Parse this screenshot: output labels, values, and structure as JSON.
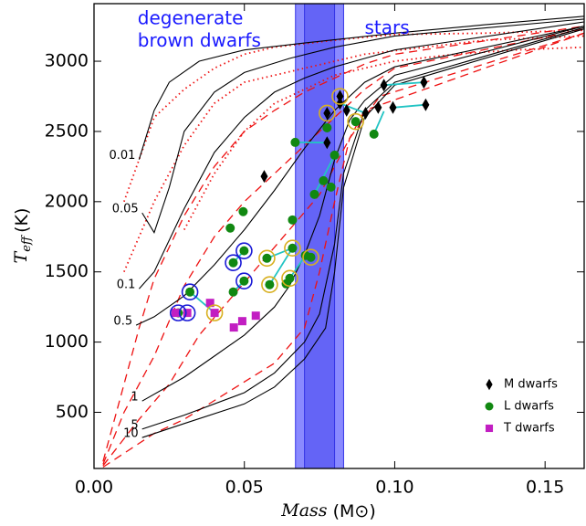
{
  "chart_data": {
    "type": "scatter",
    "xlabel_var": "Mass",
    "xlabel_unit": "(M⊙)",
    "ylabel_var": "T",
    "ylabel_sub": "eff",
    "ylabel_unit": "(K)",
    "annotations": [
      {
        "text": "degenerate",
        "x": 0.0145,
        "y": 3300,
        "color": "#1a1aff"
      },
      {
        "text": "brown dwarfs",
        "x": 0.0145,
        "y": 3140,
        "color": "#1a1aff"
      },
      {
        "text": "stars",
        "x": 0.09,
        "y": 3230,
        "color": "#1a1aff"
      }
    ],
    "xlim": [
      0,
      0.163
    ],
    "ylim": [
      100,
      3410
    ],
    "xticks": [
      {
        "value": 0,
        "label": "0.00"
      },
      0.05,
      {
        "value": 0.1,
        "label": "0.10"
      },
      0.15
    ],
    "yticks": [
      500,
      1000,
      1500,
      2000,
      2500,
      3000
    ],
    "bands": [
      {
        "x": [
          0.067,
          0.083
        ],
        "color": "#8a8aff"
      },
      {
        "x": [
          0.07,
          0.08
        ],
        "color": "#6464f6"
      }
    ],
    "isochrones": [
      {
        "label": "0.01",
        "x": [
          0.015,
          0.02,
          0.025,
          0.035,
          0.05,
          0.07,
          0.1,
          0.13,
          0.163
        ],
        "y": [
          2300,
          2650,
          2850,
          3000,
          3080,
          3130,
          3200,
          3260,
          3320
        ]
      },
      {
        "label": "0.05",
        "x": [
          0.016,
          0.02,
          0.025,
          0.03,
          0.04,
          0.05,
          0.065,
          0.08,
          0.1,
          0.163
        ],
        "y": [
          1920,
          1780,
          2100,
          2500,
          2780,
          2920,
          3020,
          3100,
          3180,
          3300
        ]
      },
      {
        "label": "0.1",
        "x": [
          0.015,
          0.02,
          0.03,
          0.04,
          0.05,
          0.06,
          0.07,
          0.08,
          0.09,
          0.1,
          0.163
        ],
        "y": [
          1380,
          1500,
          1950,
          2350,
          2600,
          2780,
          2880,
          2960,
          3020,
          3080,
          3280
        ]
      },
      {
        "label": "0.5",
        "x": [
          0.014,
          0.02,
          0.03,
          0.04,
          0.05,
          0.06,
          0.07,
          0.08,
          0.09,
          0.1,
          0.163
        ],
        "y": [
          1120,
          1180,
          1330,
          1550,
          1800,
          2080,
          2380,
          2650,
          2850,
          2960,
          3250
        ]
      },
      {
        "label": "1",
        "x": [
          0.016,
          0.03,
          0.04,
          0.05,
          0.06,
          0.065,
          0.07,
          0.075,
          0.08,
          0.085,
          0.09,
          0.1,
          0.163
        ],
        "y": [
          580,
          750,
          900,
          1050,
          1250,
          1400,
          1620,
          1900,
          2300,
          2580,
          2720,
          2900,
          3250
        ]
      },
      {
        "label": "5",
        "x": [
          0.016,
          0.03,
          0.05,
          0.06,
          0.07,
          0.075,
          0.08,
          0.083,
          0.09,
          0.1,
          0.163
        ],
        "y": [
          380,
          480,
          640,
          780,
          1000,
          1200,
          1700,
          2200,
          2650,
          2850,
          3240
        ]
      },
      {
        "label": "10",
        "x": [
          0.016,
          0.03,
          0.05,
          0.06,
          0.07,
          0.077,
          0.08,
          0.083,
          0.09,
          0.1,
          0.163
        ],
        "y": [
          320,
          420,
          560,
          680,
          880,
          1100,
          1500,
          2100,
          2600,
          2830,
          3230
        ]
      }
    ],
    "isochrone_color": "#000000",
    "dashed_tracks": [
      {
        "x": [
          0.003,
          0.01,
          0.015,
          0.02,
          0.03,
          0.04,
          0.05,
          0.06,
          0.07,
          0.08,
          0.09,
          0.1,
          0.163
        ],
        "y": [
          150,
          700,
          1100,
          1450,
          1900,
          2250,
          2500,
          2650,
          2780,
          2880,
          2980,
          3050,
          3250
        ]
      },
      {
        "x": [
          0.003,
          0.01,
          0.02,
          0.03,
          0.04,
          0.05,
          0.06,
          0.07,
          0.08,
          0.09,
          0.1,
          0.163
        ],
        "y": [
          130,
          500,
          900,
          1400,
          1750,
          2000,
          2200,
          2400,
          2600,
          2800,
          2950,
          3230
        ]
      },
      {
        "x": [
          0.003,
          0.015,
          0.025,
          0.035,
          0.045,
          0.055,
          0.065,
          0.075,
          0.085,
          0.095,
          0.163
        ],
        "y": [
          120,
          450,
          700,
          1050,
          1300,
          1550,
          1800,
          2050,
          2450,
          2750,
          3200
        ]
      },
      {
        "x": [
          0.003,
          0.02,
          0.03,
          0.045,
          0.06,
          0.07,
          0.075,
          0.08,
          0.085,
          0.09,
          0.163
        ],
        "y": [
          110,
          350,
          450,
          650,
          850,
          1100,
          1500,
          2000,
          2450,
          2650,
          3200
        ]
      }
    ],
    "dotted_tracks": [
      {
        "x": [
          0.01,
          0.02,
          0.03,
          0.04,
          0.05,
          0.06,
          0.08,
          0.1,
          0.13,
          0.163
        ],
        "y": [
          2000,
          2600,
          2800,
          2950,
          3050,
          3100,
          3150,
          3190,
          3200,
          3220
        ]
      },
      {
        "x": [
          0.01,
          0.02,
          0.03,
          0.04,
          0.05,
          0.07,
          0.09,
          0.11,
          0.13,
          0.163
        ],
        "y": [
          1500,
          2000,
          2400,
          2700,
          2850,
          2950,
          3050,
          3100,
          3150,
          3180
        ]
      },
      {
        "x": [
          0.03,
          0.04,
          0.05,
          0.06,
          0.08,
          0.1,
          0.12,
          0.14,
          0.163
        ],
        "y": [
          1800,
          2200,
          2500,
          2700,
          2900,
          3000,
          3050,
          3080,
          3100
        ]
      }
    ],
    "track_color": "#ee1111",
    "links": [
      {
        "x": [
          0.0775,
          0.0669
        ],
        "y": [
          2420,
          2422
        ]
      },
      {
        "x": [
          0.0931,
          0.0964
        ],
        "y": [
          2481,
          2643
        ]
      },
      {
        "x": [
          0.1103,
          0.0994
        ],
        "y": [
          2690,
          2670
        ]
      },
      {
        "x": [
          0.1097,
          0.0964
        ],
        "y": [
          2850,
          2830
        ]
      },
      {
        "x": [
          0.028,
          0.031
        ],
        "y": [
          1208,
          1208
        ]
      },
      {
        "x": [
          0.0319,
          0.0401
        ],
        "y": [
          1357,
          1208
        ]
      },
      {
        "x": [
          0.0499,
          0.0463
        ],
        "y": [
          1435,
          1357
        ]
      },
      {
        "x": [
          0.0463,
          0.0499
        ],
        "y": [
          1565,
          1650
        ]
      },
      {
        "x": [
          0.0575,
          0.066
        ],
        "y": [
          1597,
          1669
        ]
      },
      {
        "x": [
          0.0584,
          0.066
        ],
        "y": [
          1409,
          1669
        ]
      },
      {
        "x": [
          0.0651,
          0.0703
        ],
        "y": [
          1454,
          1617
        ]
      },
      {
        "x": [
          0.0733,
          0.08
        ],
        "y": [
          2052,
          2331
        ]
      },
      {
        "x": [
          0.0818,
          0.0903
        ],
        "y": [
          2700,
          2630
        ]
      }
    ],
    "link_color": "#22c4c4",
    "series": [
      {
        "name": "M dwarfs",
        "marker": "diamond",
        "color": "#000000",
        "x": [
          0.0566,
          0.0775,
          0.0775,
          0.0818,
          0.0818,
          0.084,
          0.0903,
          0.0945,
          0.0964,
          0.0994,
          0.1097,
          0.1103
        ],
        "y": [
          2180,
          2420,
          2630,
          2750,
          2700,
          2650,
          2630,
          2670,
          2830,
          2670,
          2850,
          2690
        ]
      },
      {
        "name": "L dwarfs",
        "marker": "circle",
        "color": "#118811",
        "x": [
          0.0669,
          0.0775,
          0.08,
          0.0763,
          0.0733,
          0.0788,
          0.0931,
          0.087,
          0.066,
          0.0496,
          0.0453,
          0.0499,
          0.0463,
          0.066,
          0.0575,
          0.0703,
          0.0721,
          0.0651,
          0.0639,
          0.0584,
          0.0499,
          0.0463,
          0.0319,
          0.028
        ],
        "y": [
          2422,
          2526,
          2331,
          2149,
          2052,
          2104,
          2481,
          2570,
          1870,
          1929,
          1812,
          1650,
          1565,
          1669,
          1597,
          1617,
          1604,
          1454,
          1415,
          1409,
          1435,
          1357,
          1357,
          1208
        ]
      },
      {
        "name": "T dwarfs",
        "marker": "square",
        "color": "#c21ec2",
        "x": [
          0.0271,
          0.031,
          0.0386,
          0.0401,
          0.0465,
          0.0493,
          0.0538
        ],
        "y": [
          1208,
          1208,
          1279,
          1208,
          1104,
          1149,
          1188
        ]
      }
    ],
    "rings": [
      {
        "color": "#1a1ad6",
        "x": [
          0.028,
          0.031,
          0.0319,
          0.0463,
          0.0499,
          0.0499
        ],
        "y": [
          1208,
          1208,
          1357,
          1565,
          1650,
          1435
        ]
      },
      {
        "color": "#d8b020",
        "x": [
          0.0775,
          0.0818,
          0.087,
          0.0575,
          0.0584,
          0.0651,
          0.066,
          0.0721,
          0.0401
        ],
        "y": [
          2630,
          2750,
          2570,
          1597,
          1409,
          1454,
          1669,
          1604,
          1208
        ]
      }
    ],
    "legend": "lower right"
  }
}
